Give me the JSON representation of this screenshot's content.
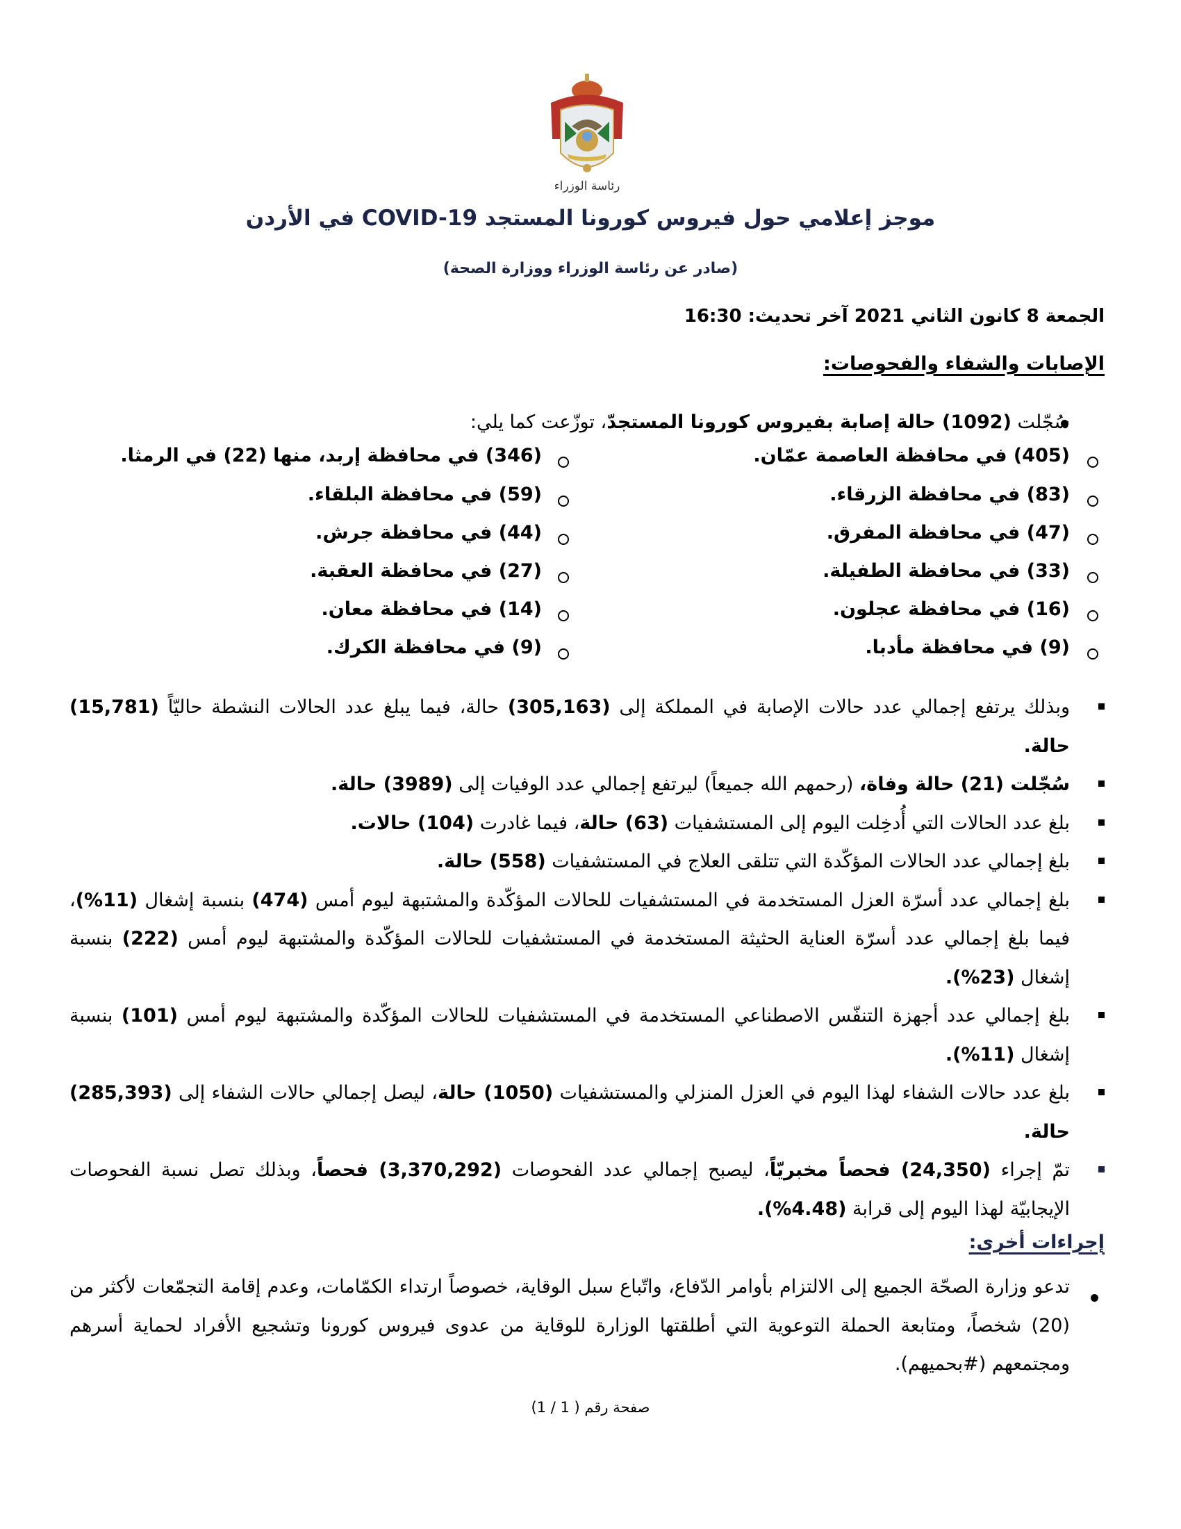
{
  "logo": {
    "caption": "رئاسة الوزراء",
    "colors": {
      "crown": "#c8572a",
      "mantle": "#b8322a",
      "gold": "#c9a24a",
      "shield": "#e8ecef"
    }
  },
  "header": {
    "title": "موجز إعلامي حول فيروس كورونا المستجد COVID-19 في الأردن",
    "subtitle": "(صادر عن رئاسة الوزراء ووزارة الصحة)",
    "dateline": "الجمعة 8 كانون الثاني 2021 آخر تحديث: 16:30"
  },
  "colors": {
    "navy": "#1c2547",
    "text": "#000000"
  },
  "sections": {
    "cases_heading": "الإصابات والشفاء والفحوصات:",
    "other_heading": "إجراءات أخرى:"
  },
  "intro": [
    {
      "t": "سُجّلت ",
      "b": false
    },
    {
      "t": "(1092) حالة إصابة بفيروس كورونا المستجدّ",
      "b": true
    },
    {
      "t": "، توزّعت كما يلي:",
      "b": false
    }
  ],
  "provinces_right": [
    "(405) في محافظة العاصمة عمّان.",
    "(83) في محافظة الزرقاء.",
    "(47) في محافظة المفرق.",
    "(33) في محافظة الطفيلة.",
    "(16) في محافظة عجلون.",
    "(9) في محافظة مأدبا."
  ],
  "provinces_left": [
    "(346) في محافظة إربد، منها (22) في الرمثا.",
    "(59) في محافظة البلقاء.",
    "(44) في محافظة جرش.",
    "(27) في محافظة العقبة.",
    "(14) في محافظة معان.",
    "(9) في محافظة الكرك."
  ],
  "facts": [
    [
      {
        "t": "وبذلك يرتفع إجمالي عدد حالات الإصابة في المملكة إلى ",
        "b": false
      },
      {
        "t": "(305,163)",
        "b": true
      },
      {
        "t": " حالة، فيما يبلغ عدد الحالات النشطة حاليّاً ",
        "b": false
      },
      {
        "t": "(15,781) حالة.",
        "b": true
      }
    ],
    [
      {
        "t": "سُجّلت (21) حالة وفاة،",
        "b": true
      },
      {
        "t": " (رحمهم الله جميعاً) ليرتفع إجمالي عدد الوفيات إلى ",
        "b": false
      },
      {
        "t": "(3989) حالة.",
        "b": true
      }
    ],
    [
      {
        "t": "بلغ عدد الحالات التي أُدخِلت اليوم إلى المستشفيات ",
        "b": false
      },
      {
        "t": "(63) حالة",
        "b": true
      },
      {
        "t": "، فيما غادرت ",
        "b": false
      },
      {
        "t": "(104) حالات.",
        "b": true
      }
    ],
    [
      {
        "t": "بلغ إجمالي عدد الحالات المؤكّدة التي تتلقى العلاج في المستشفيات ",
        "b": false
      },
      {
        "t": "(558) حالة.",
        "b": true
      }
    ],
    [
      {
        "t": "بلغ إجمالي عدد أسرّة العزل المستخدمة في المستشفيات للحالات المؤكّدة والمشتبهة ليوم أمس ",
        "b": false
      },
      {
        "t": "(474)",
        "b": true
      },
      {
        "t": " بنسبة إشغال ",
        "b": false
      },
      {
        "t": "(11%)",
        "b": true
      },
      {
        "t": "، فيما بلغ إجمالي عدد أسرّة العناية الحثيثة المستخدمة في المستشفيات للحالات المؤكّدة والمشتبهة ليوم أمس ",
        "b": false
      },
      {
        "t": "(222)",
        "b": true
      },
      {
        "t": " بنسبة إشغال ",
        "b": false
      },
      {
        "t": "(23%).",
        "b": true
      }
    ],
    [
      {
        "t": "بلغ إجمالي عدد أجهزة التنفّس الاصطناعي المستخدمة في المستشفيات للحالات المؤكّدة والمشتبهة ليوم أمس ",
        "b": false
      },
      {
        "t": "(101)",
        "b": true
      },
      {
        "t": " بنسبة إشغال ",
        "b": false
      },
      {
        "t": "(11%).",
        "b": true
      }
    ],
    [
      {
        "t": "بلغ عدد حالات الشفاء لهذا اليوم في العزل المنزلي والمستشفيات ",
        "b": false
      },
      {
        "t": "(1050) حالة",
        "b": true
      },
      {
        "t": "، ليصل إجمالي حالات الشفاء إلى ",
        "b": false
      },
      {
        "t": "(285,393) حالة.",
        "b": true
      }
    ],
    [
      {
        "t": "تمّ إجراء ",
        "b": false
      },
      {
        "t": "(24,350) فحصاً مخبريّاً",
        "b": true
      },
      {
        "t": "، ليصبح إجمالي عدد الفحوصات ",
        "b": false
      },
      {
        "t": "(3,370,292) فحصاً",
        "b": true
      },
      {
        "t": "، وبذلك تصل نسبة الفحوصات الإيجابيّة لهذا اليوم إلى قرابة ",
        "b": false
      },
      {
        "t": "(4.48%).",
        "b": true
      }
    ]
  ],
  "other": "تدعو وزارة الصحّة الجميع إلى الالتزام بأوامر الدّفاع، واتّباع سبل الوقاية، خصوصاً ارتداء الكمّامات، وعدم إقامة التجمّعات لأكثر من (20) شخصاً، ومتابعة الحملة التوعوية التي أطلقتها الوزارة للوقاية من عدوى فيروس كورونا وتشجيع الأفراد لحماية أسرهم ومجتمعهم (#بحميهم).",
  "footer": {
    "page": "صفحة رقم ( 1 / 1)"
  }
}
